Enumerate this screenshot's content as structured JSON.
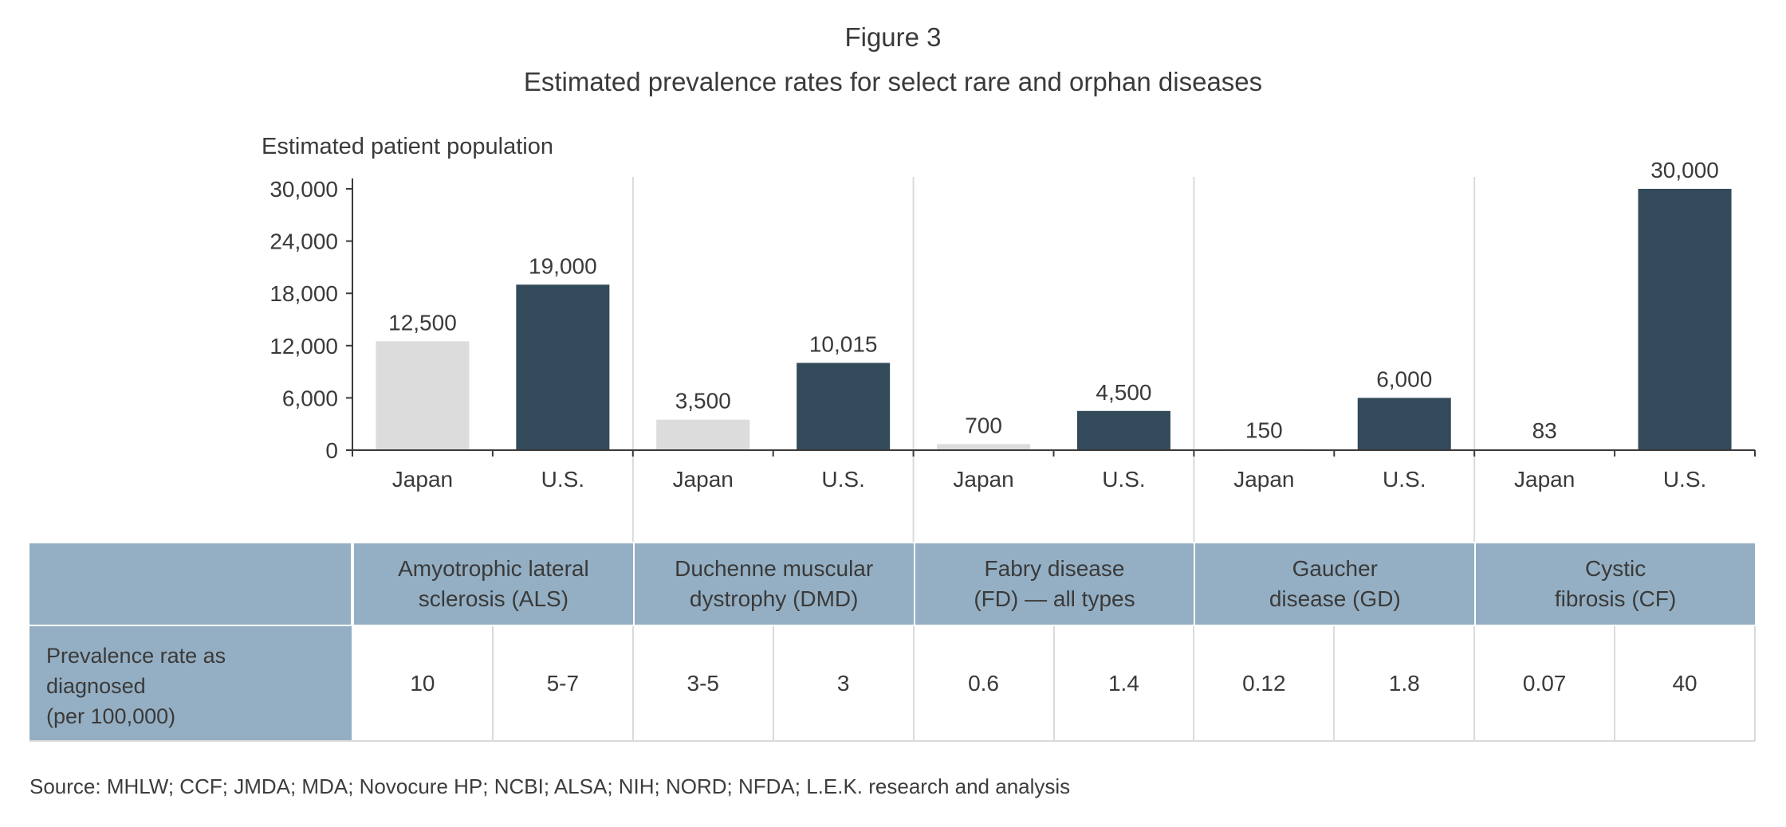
{
  "figure": {
    "label": "Figure 3",
    "title": "Estimated prevalence rates for select rare and orphan diseases"
  },
  "chart_data": {
    "type": "bar",
    "ylabel": "Estimated patient population",
    "ylim": [
      0,
      30000
    ],
    "yticks": [
      "0",
      "6,000",
      "12,000",
      "18,000",
      "24,000",
      "30,000"
    ],
    "ytick_values": [
      0,
      6000,
      12000,
      18000,
      24000,
      30000
    ],
    "grid": false,
    "groups": [
      {
        "disease": "Amyotrophic lateral\nsclerosis (ALS)",
        "bars": [
          {
            "country": "Japan",
            "value": 12500,
            "label": "12,500"
          },
          {
            "country": "U.S.",
            "value": 19000,
            "label": "19,000"
          }
        ]
      },
      {
        "disease": "Duchenne muscular\ndystrophy (DMD)",
        "bars": [
          {
            "country": "Japan",
            "value": 3500,
            "label": "3,500"
          },
          {
            "country": "U.S.",
            "value": 10015,
            "label": "10,015"
          }
        ]
      },
      {
        "disease": "Fabry disease\n(FD) — all types",
        "bars": [
          {
            "country": "Japan",
            "value": 700,
            "label": "700"
          },
          {
            "country": "U.S.",
            "value": 4500,
            "label": "4,500"
          }
        ]
      },
      {
        "disease": "Gaucher\ndisease (GD)",
        "bars": [
          {
            "country": "Japan",
            "value": 150,
            "label": "150"
          },
          {
            "country": "U.S.",
            "value": 6000,
            "label": "6,000"
          }
        ]
      },
      {
        "disease": "Cystic\nfibrosis (CF)",
        "bars": [
          {
            "country": "Japan",
            "value": 83,
            "label": "83"
          },
          {
            "country": "U.S.",
            "value": 30000,
            "label": "30,000"
          }
        ]
      }
    ],
    "colors": {
      "Japan": "#dcdcdc",
      "U.S.": "#334a5a"
    }
  },
  "table": {
    "row_label": "Prevalence rate as\ndiagnosed\n(per 100,000)",
    "values": [
      "10",
      "5-7",
      "3-5",
      "3",
      "0.6",
      "1.4",
      "0.12",
      "1.8",
      "0.07",
      "40"
    ]
  },
  "source": "Source: MHLW; CCF; JMDA; MDA; Novocure HP; NCBI; ALSA; NIH; NORD; NFDA; L.E.K. research and analysis",
  "colors": {
    "header_bg": "#94afc3",
    "text": "#3a3a3a",
    "divider": "#dadada"
  }
}
